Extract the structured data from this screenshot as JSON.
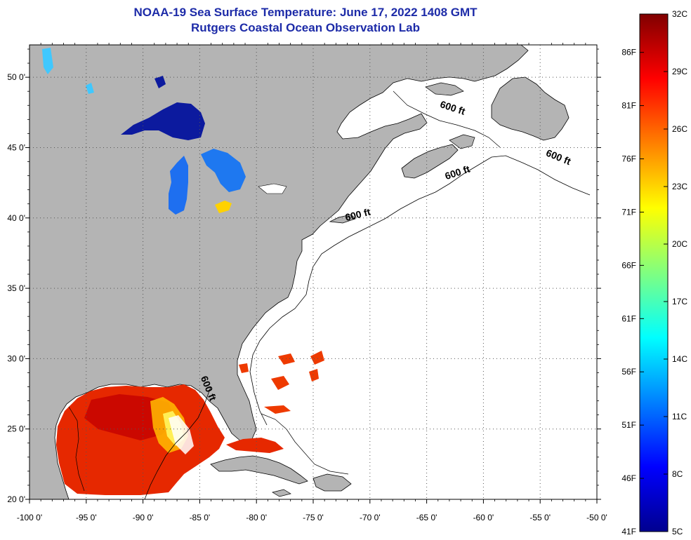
{
  "title": "NOAA-19 Sea Surface Temperature:  June 17, 2022 1408 GMT",
  "subtitle": "Rutgers Coastal Ocean Observation Lab",
  "map": {
    "lon_range": [
      -100,
      -50
    ],
    "lat_range": [
      20,
      52.3
    ],
    "lon_ticks": [
      -100,
      -95,
      -90,
      -85,
      -80,
      -75,
      -70,
      -65,
      -60,
      -55,
      -50
    ],
    "lon_labels": [
      "-100 0'",
      "-95 0'",
      "-90 0'",
      "-85 0'",
      "-80 0'",
      "-75 0'",
      "-70 0'",
      "-65 0'",
      "-60 0'",
      "-55 0'",
      "-50 0'"
    ],
    "lat_ticks": [
      20,
      25,
      30,
      35,
      40,
      45,
      50
    ],
    "lat_labels": [
      "20 0'",
      "25 0'",
      "30 0'",
      "35 0'",
      "40 0'",
      "45 0'",
      "50 0'"
    ],
    "grid": true,
    "land_color": "#b4b4b4",
    "water_color": "#ffffff",
    "contour_labels": [
      {
        "text": "600 ft",
        "lon": -62.8,
        "lat": 47.6,
        "angle": 18
      },
      {
        "text": "600 ft",
        "lon": -53.5,
        "lat": 44.1,
        "angle": 22
      },
      {
        "text": "600 ft",
        "lon": -62.2,
        "lat": 43.0,
        "angle": -18
      },
      {
        "text": "600 ft",
        "lon": -71.0,
        "lat": 40.0,
        "angle": -14
      },
      {
        "text": "600 ft",
        "lon": -84.5,
        "lat": 27.8,
        "angle": 68
      }
    ]
  },
  "colorbar": {
    "min_c": 5,
    "max_c": 32,
    "celsius_ticks": [
      5,
      8,
      11,
      14,
      17,
      20,
      23,
      26,
      29,
      32
    ],
    "celsius_labels": [
      "5C",
      "8C",
      "11C",
      "14C",
      "17C",
      "20C",
      "23C",
      "26C",
      "29C",
      "32C"
    ],
    "fahrenheit_ticks": [
      41,
      46,
      51,
      56,
      61,
      66,
      71,
      76,
      81,
      86
    ],
    "fahrenheit_labels": [
      "41F",
      "46F",
      "51F",
      "56F",
      "61F",
      "66F",
      "71F",
      "76F",
      "81F",
      "86F"
    ],
    "colors": [
      "#00008f",
      "#0000ff",
      "#0080ff",
      "#00ffff",
      "#80ff80",
      "#ffff00",
      "#ff8000",
      "#ff0000",
      "#800000"
    ]
  }
}
